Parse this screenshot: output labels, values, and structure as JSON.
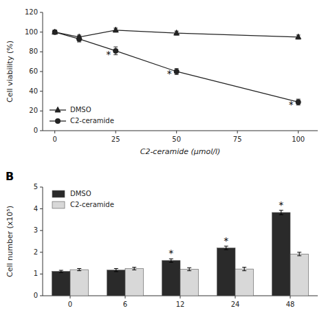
{
  "chart_data": [
    {
      "type": "line",
      "xlabel": "C2-ceramide (μmol/l)",
      "ylabel": "Cell viability (%)",
      "x": [
        0,
        10,
        25,
        50,
        100
      ],
      "xlim": [
        -5,
        108
      ],
      "xticks": [
        0,
        25,
        50,
        75,
        100
      ],
      "ylim": [
        0,
        120
      ],
      "yticks": [
        0,
        20,
        40,
        60,
        80,
        100,
        120
      ],
      "grid": false,
      "legend": "lower left",
      "series": [
        {
          "name": "DMSO",
          "color": "#222222",
          "marker": "triangle",
          "values": [
            100,
            95,
            102,
            99,
            95
          ],
          "errors": [
            2,
            2,
            2,
            2,
            2
          ]
        },
        {
          "name": "C2-ceramide",
          "color": "#222222",
          "marker": "circle",
          "values": [
            100,
            93,
            81,
            60,
            29
          ],
          "errors": [
            2,
            3,
            4,
            3,
            3
          ]
        }
      ],
      "annotations": [
        {
          "text": "*",
          "x": 25,
          "y": 77
        },
        {
          "text": "*",
          "x": 50,
          "y": 57
        },
        {
          "text": "*",
          "x": 100,
          "y": 26
        }
      ]
    },
    {
      "type": "bar",
      "title": "B",
      "ylabel": "Cell number (x10⁵)",
      "categories": [
        "0",
        "6",
        "12",
        "24",
        "48"
      ],
      "ylim": [
        0,
        5
      ],
      "yticks": [
        0,
        1,
        2,
        3,
        4,
        5
      ],
      "grid": false,
      "legend": "upper left",
      "series": [
        {
          "name": "DMSO",
          "color": "#2a2a2a",
          "values": [
            1.12,
            1.18,
            1.62,
            2.2,
            3.83
          ],
          "errors": [
            0.05,
            0.07,
            0.08,
            0.08,
            0.1
          ]
        },
        {
          "name": "C2-ceramide",
          "color": "#d8d8d8",
          "values": [
            1.2,
            1.25,
            1.22,
            1.23,
            1.92
          ],
          "errors": [
            0.05,
            0.06,
            0.07,
            0.08,
            0.08
          ]
        }
      ],
      "annotations": [
        {
          "text": "*",
          "series": "DMSO",
          "category": "12"
        },
        {
          "text": "*",
          "series": "DMSO",
          "category": "24"
        },
        {
          "text": "*",
          "series": "DMSO",
          "category": "48"
        }
      ]
    }
  ]
}
